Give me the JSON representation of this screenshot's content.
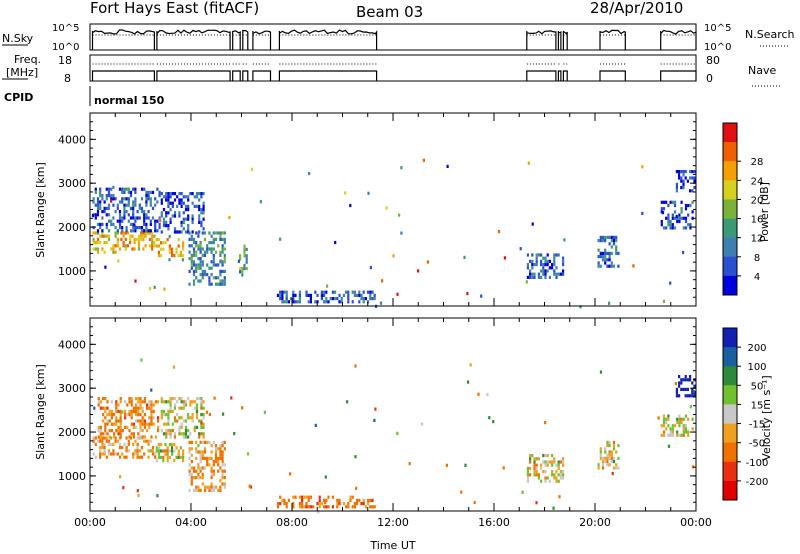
{
  "header": {
    "title": "Fort Hays East (fitACF)",
    "beam": "Beam 03",
    "date": "28/Apr/2010"
  },
  "status_panels": {
    "nsky_label": "N.Sky",
    "nsearch_label": "N.Search",
    "noise_ticks": [
      "10^5",
      "10^0"
    ],
    "freq_label_1": "Freq.",
    "freq_label_2": "[MHz]",
    "freq_ticks": [
      "18",
      "8"
    ],
    "nave_label": "Nave",
    "nave_ticks": [
      "80",
      "0"
    ],
    "cpid_label": "CPID",
    "cpid_value": "normal 150"
  },
  "colors": {
    "power": [
      "#0000dd",
      "#2a4fd0",
      "#3d7fb0",
      "#3a9a78",
      "#7ab23a",
      "#d8d020",
      "#f4a000",
      "#f06000",
      "#e01010"
    ],
    "velocity": [
      "#1020b0",
      "#1a5fa0",
      "#2d8a3a",
      "#70c030",
      "#c8c8c8",
      "#f0a020",
      "#f07000",
      "#e83010",
      "#e00000"
    ]
  },
  "chart_data": [
    {
      "type": "heatmap",
      "name": "power",
      "xlabel": "",
      "ylabel": "Slant Range [km]",
      "xlim": [
        "00:00",
        "24:00"
      ],
      "ylim": [
        200,
        4600
      ],
      "yticks": [
        "1000",
        "2000",
        "3000",
        "4000"
      ],
      "colorbar": {
        "label": "Power [dB]",
        "ticks": [
          "4",
          "8",
          "12",
          "16",
          "20",
          "24",
          "28"
        ],
        "range": [
          0,
          32
        ]
      },
      "echo_regions": [
        {
          "t0": 0.1,
          "t1": 1.2,
          "r0": 1450,
          "r1": 1900,
          "level": 20
        },
        {
          "t0": 1.2,
          "t1": 2.6,
          "r0": 1500,
          "r1": 1900,
          "level": 22
        },
        {
          "t0": 2.6,
          "t1": 3.7,
          "r0": 1350,
          "r1": 1750,
          "level": 24
        },
        {
          "t0": 0.1,
          "t1": 2.8,
          "r0": 1900,
          "r1": 2900,
          "level": 6
        },
        {
          "t0": 2.8,
          "t1": 4.5,
          "r0": 1900,
          "r1": 2800,
          "level": 6
        },
        {
          "t0": 3.9,
          "t1": 5.3,
          "r0": 700,
          "r1": 1900,
          "level": 10
        },
        {
          "t0": 5.9,
          "t1": 6.2,
          "r0": 900,
          "r1": 1600,
          "level": 12
        },
        {
          "t0": 7.4,
          "t1": 11.3,
          "r0": 300,
          "r1": 550,
          "level": 6
        },
        {
          "t0": 17.3,
          "t1": 18.7,
          "r0": 850,
          "r1": 1400,
          "level": 6
        },
        {
          "t0": 20.1,
          "t1": 20.9,
          "r0": 1100,
          "r1": 1800,
          "level": 8
        },
        {
          "t0": 22.6,
          "t1": 23.9,
          "r0": 1950,
          "r1": 2600,
          "level": 6
        },
        {
          "t0": 23.2,
          "t1": 23.9,
          "r0": 2800,
          "r1": 3300,
          "level": 4
        }
      ]
    },
    {
      "type": "heatmap",
      "name": "velocity",
      "xlabel": "Time UT",
      "ylabel": "Slant Range [km]",
      "xlim": [
        "00:00",
        "24:00"
      ],
      "xticks": [
        "00:00",
        "04:00",
        "08:00",
        "12:00",
        "16:00",
        "20:00",
        "00:00"
      ],
      "ylim": [
        200,
        4600
      ],
      "yticks": [
        "1000",
        "2000",
        "3000",
        "4000"
      ],
      "colorbar": {
        "label": "Velocity [m s⁻¹]",
        "ticks": [
          "200",
          "100",
          "50",
          "15",
          "-15",
          "-50",
          "-100",
          "-200"
        ],
        "range": [
          -250,
          250
        ]
      },
      "echo_regions": [
        {
          "t0": 0.1,
          "t1": 2.6,
          "r0": 1450,
          "r1": 1900,
          "level": -30
        },
        {
          "t0": 2.6,
          "t1": 3.7,
          "r0": 1350,
          "r1": 1750,
          "level": 0
        },
        {
          "t0": 0.3,
          "t1": 2.7,
          "r0": 1900,
          "r1": 2800,
          "level": -40
        },
        {
          "t0": 2.8,
          "t1": 4.5,
          "r0": 1900,
          "r1": 2800,
          "level": 0
        },
        {
          "t0": 3.9,
          "t1": 5.3,
          "r0": 700,
          "r1": 1800,
          "level": -30
        },
        {
          "t0": 7.4,
          "t1": 11.3,
          "r0": 300,
          "r1": 550,
          "level": -60
        },
        {
          "t0": 17.3,
          "t1": 18.7,
          "r0": 850,
          "r1": 1500,
          "level": 0
        },
        {
          "t0": 20.1,
          "t1": 20.9,
          "r0": 1200,
          "r1": 1800,
          "level": 0
        },
        {
          "t0": 22.6,
          "t1": 23.9,
          "r0": 1950,
          "r1": 2400,
          "level": 0
        },
        {
          "t0": 23.2,
          "t1": 23.9,
          "r0": 2800,
          "r1": 3300,
          "level": 200
        }
      ]
    }
  ],
  "operating_intervals_ut": [
    [
      0.1,
      2.55
    ],
    [
      2.65,
      5.55
    ],
    [
      5.65,
      5.95
    ],
    [
      6.05,
      6.25
    ],
    [
      6.45,
      7.15
    ],
    [
      7.5,
      11.35
    ],
    [
      17.3,
      18.45
    ],
    [
      18.55,
      18.65
    ],
    [
      18.75,
      18.9
    ],
    [
      20.2,
      21.2
    ],
    [
      22.6,
      24.0
    ]
  ]
}
